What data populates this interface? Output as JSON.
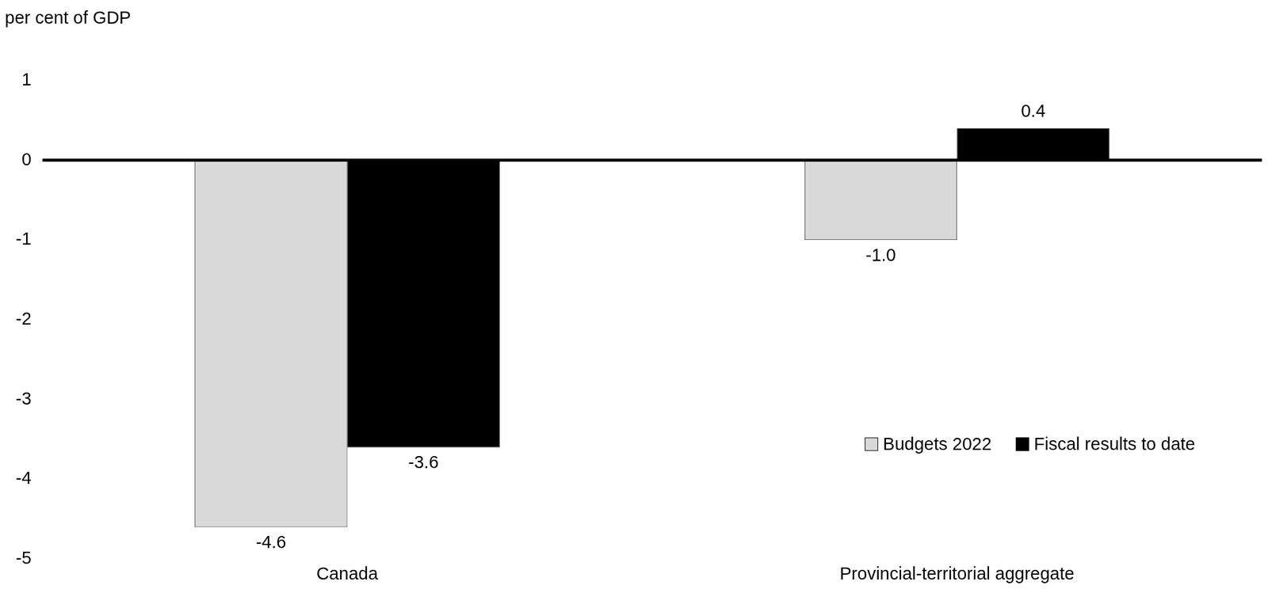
{
  "chart_data": {
    "type": "bar",
    "ylabel": "per cent of GDP",
    "categories": [
      "Canada",
      "Provincial-territorial aggregate"
    ],
    "series": [
      {
        "name": "Budgets 2022",
        "color": "#d9d9d9",
        "values": [
          -4.6,
          -1.0
        ],
        "value_labels": [
          "-4.6",
          "-1.0"
        ]
      },
      {
        "name": "Fiscal results to date",
        "color": "#000000",
        "values": [
          -3.6,
          0.4
        ],
        "value_labels": [
          "-3.6",
          "0.4"
        ]
      }
    ],
    "ylim": [
      -5,
      1
    ],
    "yticks": [
      -5,
      -4,
      -3,
      -2,
      -1,
      0,
      1
    ],
    "grid": false,
    "legend": "lower right",
    "data_labels": true
  }
}
